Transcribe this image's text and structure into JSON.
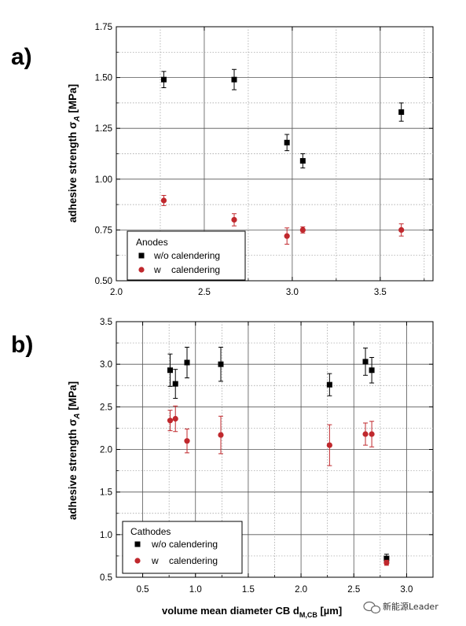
{
  "chart_data": [
    {
      "type": "scatter",
      "panel_label": "a)",
      "ylabel": "adhesive strength σ_A [MPa]",
      "xlabel": "",
      "xlim": [
        2.0,
        3.8
      ],
      "ylim": [
        0.5,
        1.75
      ],
      "x_ticks": [
        "2.0",
        "2.5",
        "3.0",
        "3.5"
      ],
      "x_tick_values": [
        2.0,
        2.5,
        3.0,
        3.5
      ],
      "y_ticks": [
        "0.50",
        "0.75",
        "1.00",
        "1.25",
        "1.50",
        "1.75"
      ],
      "y_tick_values": [
        0.5,
        0.75,
        1.0,
        1.25,
        1.5,
        1.75
      ],
      "grid": true,
      "legend": {
        "title": "Anodes",
        "placement": "bottom-left",
        "entries": [
          "w/o calendering",
          "w    calendering"
        ]
      },
      "series": [
        {
          "name": "w/o calendering",
          "color": "#000000",
          "marker": "square",
          "x": [
            2.27,
            2.67,
            2.97,
            3.06,
            3.62
          ],
          "y": [
            1.49,
            1.49,
            1.18,
            1.09,
            1.33
          ],
          "err": [
            0.04,
            0.05,
            0.04,
            0.035,
            0.045
          ]
        },
        {
          "name": "w    calendering",
          "color": "#c0282d",
          "marker": "circle",
          "x": [
            2.27,
            2.67,
            2.97,
            3.06,
            3.62
          ],
          "y": [
            0.895,
            0.8,
            0.72,
            0.75,
            0.75
          ],
          "err": [
            0.025,
            0.03,
            0.04,
            0.015,
            0.03
          ]
        }
      ]
    },
    {
      "type": "scatter",
      "panel_label": "b)",
      "ylabel": "adhesive strength σ_A [MPa]",
      "xlabel": "volume mean diameter CB d_M,CB [µm]",
      "xlim": [
        0.25,
        3.25
      ],
      "ylim": [
        0.5,
        3.5
      ],
      "x_ticks": [
        "0.5",
        "1.0",
        "1.5",
        "2.0",
        "2.5",
        "3.0"
      ],
      "x_tick_values": [
        0.5,
        1.0,
        1.5,
        2.0,
        2.5,
        3.0
      ],
      "y_ticks": [
        "0.5",
        "1.0",
        "1.5",
        "2.0",
        "2.5",
        "3.0",
        "3.5"
      ],
      "y_tick_values": [
        0.5,
        1.0,
        1.5,
        2.0,
        2.5,
        3.0,
        3.5
      ],
      "grid": true,
      "legend": {
        "title": "Cathodes",
        "placement": "bottom-left",
        "entries": [
          "w/o calendering",
          "w    calendering"
        ]
      },
      "series": [
        {
          "name": "w/o calendering",
          "color": "#000000",
          "marker": "square",
          "x": [
            0.76,
            0.81,
            0.92,
            1.24,
            2.27,
            2.61,
            2.67,
            2.81
          ],
          "y": [
            2.93,
            2.77,
            3.02,
            3.0,
            2.76,
            3.03,
            2.93,
            0.72
          ],
          "err": [
            0.19,
            0.17,
            0.18,
            0.2,
            0.13,
            0.16,
            0.15,
            0.05
          ]
        },
        {
          "name": "w    calendering",
          "color": "#c0282d",
          "marker": "circle",
          "x": [
            0.76,
            0.81,
            0.92,
            1.24,
            2.27,
            2.61,
            2.67,
            2.81
          ],
          "y": [
            2.34,
            2.36,
            2.1,
            2.17,
            2.05,
            2.18,
            2.18,
            0.67
          ],
          "err": [
            0.12,
            0.15,
            0.14,
            0.22,
            0.24,
            0.13,
            0.15,
            0.03
          ]
        }
      ]
    }
  ],
  "watermark": {
    "text": "新能源Leader",
    "icon": "wechat-icon"
  }
}
